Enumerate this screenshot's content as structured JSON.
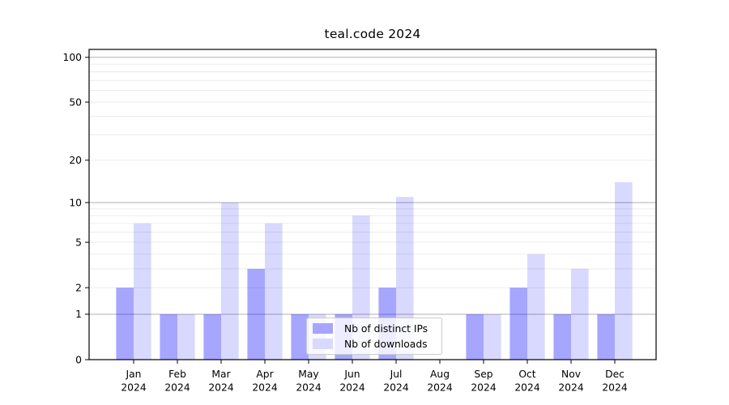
{
  "figure": {
    "background": "#ffffff",
    "frame_color": "#000000"
  },
  "chart_data": {
    "type": "bar",
    "title": "teal.code 2024",
    "categories": [
      "Jan 2024",
      "Feb 2024",
      "Mar 2024",
      "Apr 2024",
      "May 2024",
      "Jun 2024",
      "Jul 2024",
      "Aug 2024",
      "Sep 2024",
      "Oct 2024",
      "Nov 2024",
      "Dec 2024"
    ],
    "series": [
      {
        "name": "Nb of distinct IPs",
        "color": "#0000ff",
        "opacity": 0.35,
        "legend_hex": "#a6a6ff",
        "values": [
          2,
          1,
          1,
          3,
          1,
          1,
          2,
          0,
          1,
          2,
          1,
          1
        ]
      },
      {
        "name": "Nb of downloads",
        "color": "#0000ff",
        "opacity": 0.15,
        "legend_hex": "#d9d9ff",
        "values": [
          7,
          1,
          10,
          7,
          1,
          8,
          11,
          0,
          1,
          4,
          3,
          14
        ]
      }
    ],
    "xlabel": "",
    "ylabel": "",
    "yscale": "log1p",
    "ylim": [
      0,
      113
    ],
    "y_ticks": [
      0,
      1,
      2,
      5,
      10,
      20,
      50,
      100
    ],
    "y_major_gridlines": [
      1,
      10,
      100
    ],
    "y_minor_gridlines": [
      2,
      3,
      4,
      5,
      6,
      7,
      8,
      9,
      20,
      30,
      40,
      50,
      60,
      70,
      80,
      90
    ],
    "grid": true,
    "legend_position": "lower center"
  },
  "colors": {
    "major_grid": "#b0b0b0",
    "minor_grid": "#e9e9e9",
    "tick_text": "#000000",
    "axis": "#000000",
    "legend_border": "#cccccc",
    "legend_background": "rgba(255,255,255,0.8)"
  }
}
